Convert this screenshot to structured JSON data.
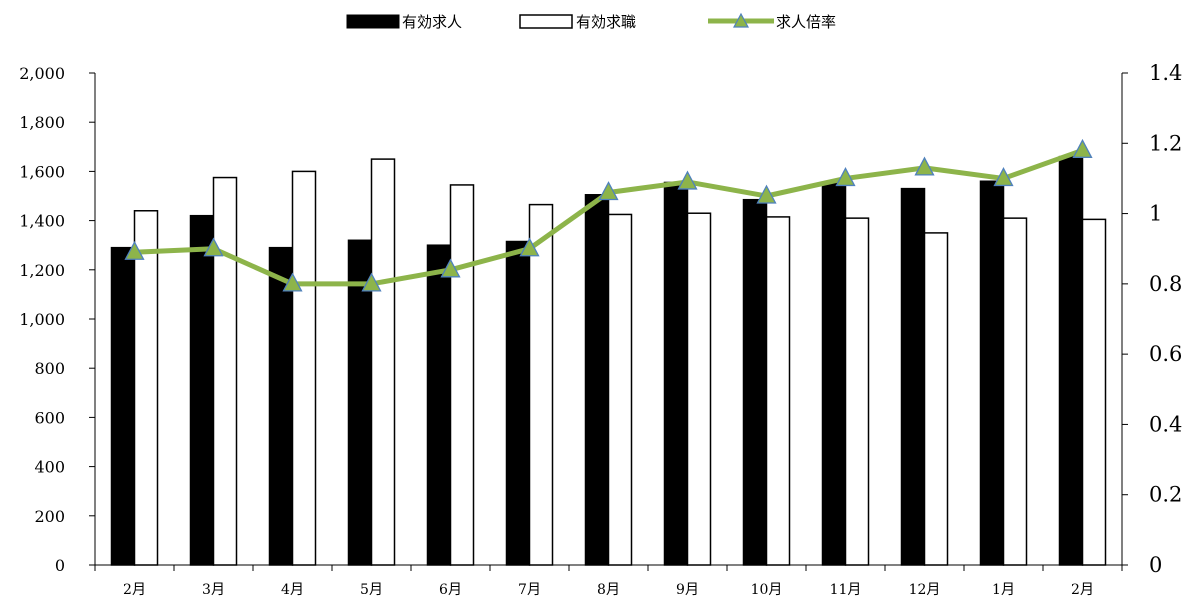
{
  "chart_data": {
    "type": "bar",
    "categories": [
      "2月",
      "3月",
      "4月",
      "5月",
      "6月",
      "7月",
      "8月",
      "9月",
      "10月",
      "11月",
      "12月",
      "1月",
      "2月"
    ],
    "series": [
      {
        "name": "有効求人",
        "type": "bar",
        "axis": "left",
        "color": "#000000",
        "values": [
          1290,
          1420,
          1290,
          1320,
          1300,
          1315,
          1505,
          1555,
          1485,
          1555,
          1530,
          1560,
          1660
        ]
      },
      {
        "name": "有効求職",
        "type": "bar",
        "axis": "left",
        "color": "#ffffff",
        "values": [
          1440,
          1575,
          1600,
          1650,
          1545,
          1465,
          1425,
          1430,
          1415,
          1410,
          1350,
          1410,
          1405
        ]
      },
      {
        "name": "求人倍率",
        "type": "line",
        "axis": "right",
        "color": "#8db44a",
        "values": [
          0.89,
          0.9,
          0.8,
          0.8,
          0.84,
          0.9,
          1.06,
          1.09,
          1.05,
          1.1,
          1.13,
          1.1,
          1.18
        ]
      }
    ],
    "y_left": {
      "min": 0,
      "max": 2000,
      "step": 200,
      "tick_labels": [
        "0",
        "200",
        "400",
        "600",
        "800",
        "1,000",
        "1,200",
        "1,400",
        "1,600",
        "1,800",
        "2,000"
      ]
    },
    "y_right": {
      "min": 0,
      "max": 1.4,
      "step": 0.2,
      "tick_labels": [
        "0",
        "0.2",
        "0.4",
        "0.6",
        "0.8",
        "1",
        "1.2",
        "1.4"
      ]
    },
    "grid": false,
    "legend_position": "top-center",
    "colors": {
      "line": "#8db44a",
      "marker_fill": "#8db44a",
      "marker_stroke": "#4f81bd",
      "bar_outline": "#000000"
    }
  }
}
